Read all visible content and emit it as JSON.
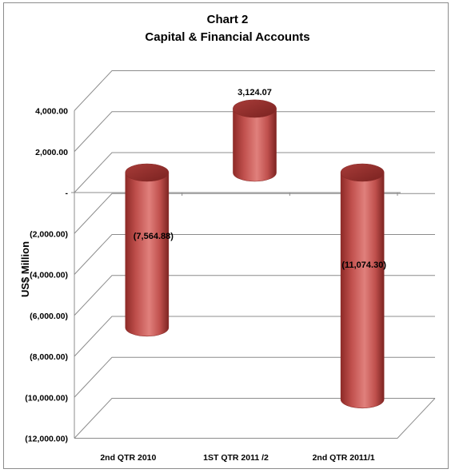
{
  "chart_data": {
    "type": "bar",
    "title": "Chart 2",
    "subtitle": "Capital & Financial Accounts",
    "ylabel": "US$ Million",
    "xlabel": "",
    "categories": [
      "2nd QTR 2010",
      "1ST QTR 2011 /2",
      "2nd QTR 2011/1"
    ],
    "values": [
      -7564.88,
      3124.07,
      -11074.3
    ],
    "data_labels": [
      "(7,564.88)",
      "3,124.07",
      "(11,074.30)"
    ],
    "ylim": [
      -12000,
      4000
    ],
    "yticks": [
      4000,
      2000,
      0,
      -2000,
      -4000,
      -6000,
      -8000,
      -10000,
      -12000
    ],
    "ytick_labels": [
      "4,000.00",
      "2,000.00",
      "-",
      "(2,000.00)",
      "(4,000.00)",
      "(6,000.00)",
      "(8,000.00)",
      "(10,000.00)",
      "(12,000.00)"
    ],
    "grid": true,
    "style": "3d-cylinder",
    "bar_color": "#c0504d"
  }
}
